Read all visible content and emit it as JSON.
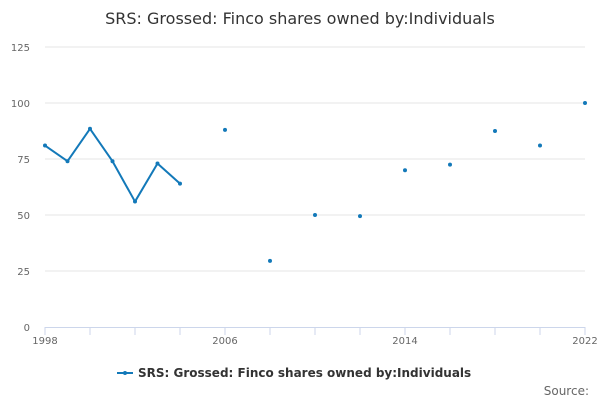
{
  "chart_data": {
    "type": "line",
    "title": "SRS: Grossed: Finco shares owned by:Individuals",
    "xlabel": "",
    "ylabel": "",
    "xlim": [
      1998,
      2022
    ],
    "ylim": [
      0,
      125
    ],
    "y_ticks": [
      0,
      25,
      50,
      75,
      100,
      125
    ],
    "x_ticks": [
      1998,
      2006,
      2014,
      2022
    ],
    "grid": "horizontal",
    "legend_position": "bottom",
    "series": [
      {
        "name": "SRS: Grossed: Finco shares owned by:Individuals",
        "color": "#1379b9",
        "points": [
          {
            "x": 1998,
            "y": 81
          },
          {
            "x": 1999,
            "y": 74
          },
          {
            "x": 2000,
            "y": 88.5
          },
          {
            "x": 2001,
            "y": 74
          },
          {
            "x": 2002,
            "y": 56
          },
          {
            "x": 2003,
            "y": 73
          },
          {
            "x": 2004,
            "y": 64
          },
          {
            "x": 2006,
            "y": 88
          },
          {
            "x": 2008,
            "y": 29.5
          },
          {
            "x": 2010,
            "y": 50
          },
          {
            "x": 2012,
            "y": 49.5
          },
          {
            "x": 2014,
            "y": 70
          },
          {
            "x": 2016,
            "y": 72.5
          },
          {
            "x": 2018,
            "y": 87.5
          },
          {
            "x": 2020,
            "y": 81
          },
          {
            "x": 2022,
            "y": 100
          }
        ]
      }
    ],
    "source_label": "Source:"
  }
}
